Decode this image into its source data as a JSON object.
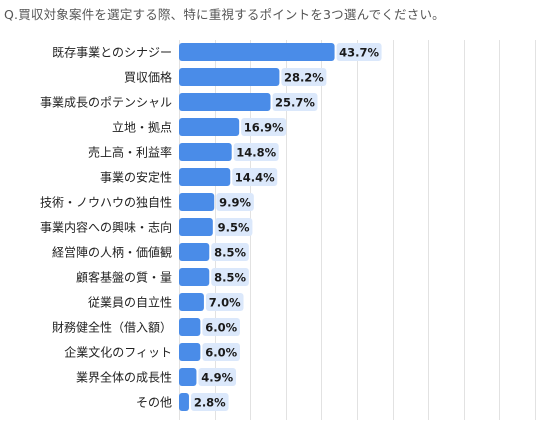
{
  "question": "Q.買収対象案件を選定する際、特に重視するポイントを3つ選んでください。",
  "colors": {
    "bar": "#4a8ce8",
    "value_label_bg": "#dbe8fb",
    "grid": "#e2e2e2"
  },
  "chart_data": {
    "type": "bar",
    "orientation": "horizontal",
    "categories": [
      "既存事業とのシナジー",
      "買収価格",
      "事業成長のポテンシャル",
      "立地・拠点",
      "売上高・利益率",
      "事業の安定性",
      "技術・ノウハウの独自性",
      "事業内容への興味・志向",
      "経営陣の人柄・価値観",
      "顧客基盤の質・量",
      "従業員の自立性",
      "財務健全性（借入額）",
      "企業文化のフィット",
      "業界全体の成長性",
      "その他"
    ],
    "values": [
      43.7,
      28.2,
      25.7,
      16.9,
      14.8,
      14.4,
      9.9,
      9.5,
      8.5,
      8.5,
      7.0,
      6.0,
      6.0,
      4.9,
      2.8
    ],
    "value_labels": [
      "43.7%",
      "28.2%",
      "25.7%",
      "16.9%",
      "14.8%",
      "14.4%",
      "9.9%",
      "9.5%",
      "8.5%",
      "8.5%",
      "7.0%",
      "6.0%",
      "6.0%",
      "4.9%",
      "2.8%"
    ],
    "xlim": [
      0,
      100
    ],
    "grid": true,
    "legend": "none"
  }
}
